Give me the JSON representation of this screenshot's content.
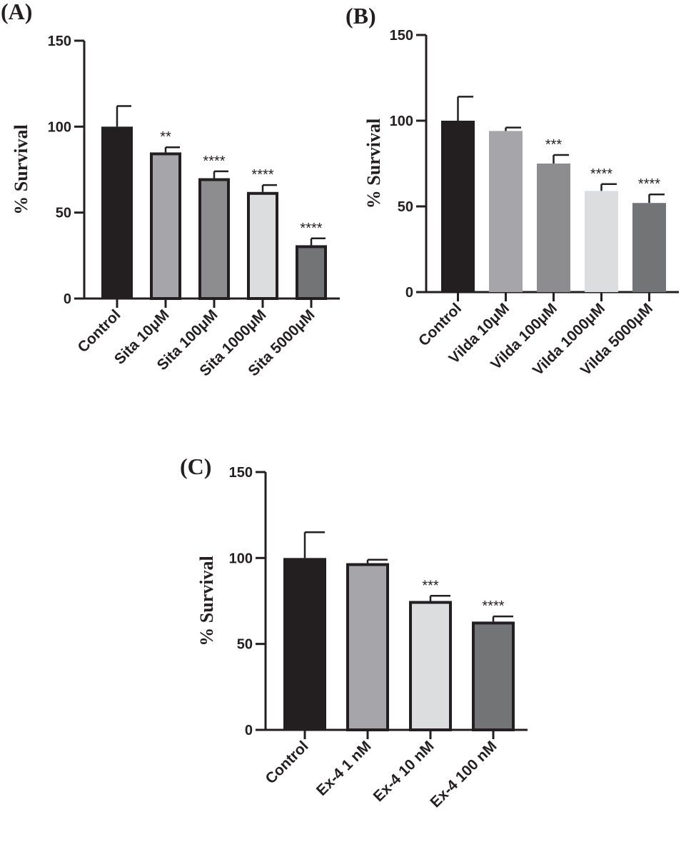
{
  "chart_data": [
    {
      "type": "bar",
      "panel_label": "(A)",
      "ylabel": "% Survival",
      "ylim": [
        0,
        150
      ],
      "yticks": [
        "0",
        "50",
        "100",
        "150"
      ],
      "categories": [
        "Control",
        "Sita 10μM",
        "Sita 100μM",
        "Sita 1000μM",
        "Sita 5000μM"
      ],
      "values": [
        100,
        85,
        70,
        62,
        31
      ],
      "errors": [
        12,
        3,
        4,
        4,
        4
      ],
      "significance": [
        "",
        "**",
        "****",
        "****",
        "****"
      ],
      "colors": [
        "#231f20",
        "#a6a6aa",
        "#8d8d90",
        "#dcdddf",
        "#737476"
      ],
      "outlined": [
        false,
        true,
        true,
        true,
        true
      ]
    },
    {
      "type": "bar",
      "panel_label": "(B)",
      "ylabel": "% Survival",
      "ylim": [
        0,
        150
      ],
      "yticks": [
        "0",
        "50",
        "100",
        "150"
      ],
      "categories": [
        "Control",
        "Vilda 10μM",
        "Vilda 100μM",
        "Vilda 1000μM",
        "Vilda 5000μM"
      ],
      "values": [
        100,
        94,
        75,
        59,
        52
      ],
      "errors": [
        14,
        2,
        5,
        4,
        5
      ],
      "significance": [
        "",
        "",
        "***",
        "****",
        "****"
      ],
      "colors": [
        "#231f20",
        "#a6a6aa",
        "#8d8d90",
        "#dcdddf",
        "#737476"
      ],
      "outlined": [
        false,
        false,
        false,
        false,
        false
      ]
    },
    {
      "type": "bar",
      "panel_label": "(C)",
      "ylabel": "% Survival",
      "ylim": [
        0,
        150
      ],
      "yticks": [
        "0",
        "50",
        "100",
        "150"
      ],
      "categories": [
        "Control",
        "Ex-4 1 nM",
        "Ex-4 10 nM",
        "Ex-4 100 nM"
      ],
      "values": [
        100,
        97,
        75,
        63
      ],
      "errors": [
        15,
        2,
        3,
        3
      ],
      "significance": [
        "",
        "",
        "***",
        "****"
      ],
      "colors": [
        "#231f20",
        "#a6a6aa",
        "#dcdddf",
        "#737476"
      ],
      "outlined": [
        false,
        true,
        true,
        true
      ]
    }
  ]
}
